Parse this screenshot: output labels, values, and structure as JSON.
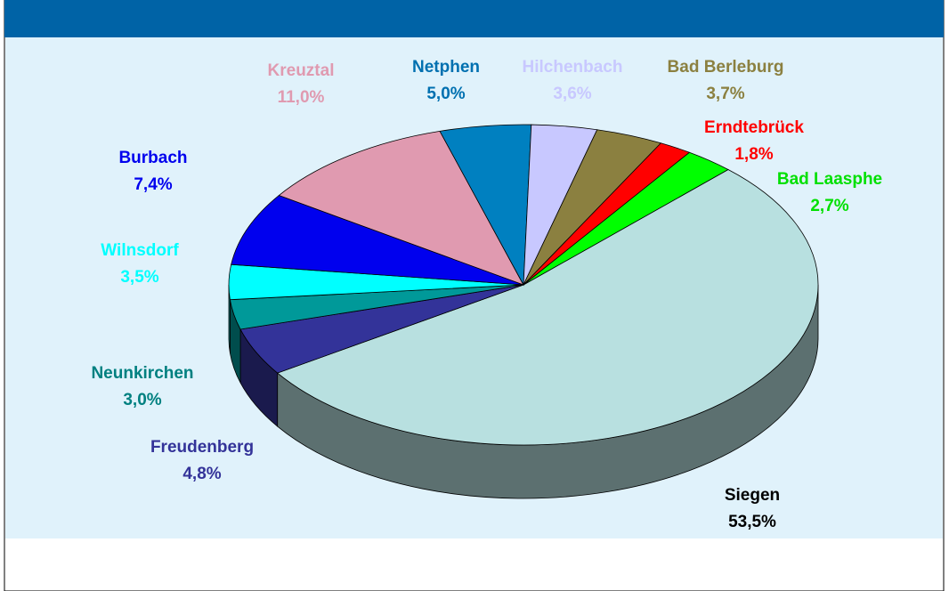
{
  "chart_data": {
    "type": "pie",
    "categories": [
      "Siegen",
      "Freudenberg",
      "Neunkirchen",
      "Wilnsdorf",
      "Burbach",
      "Kreuztal",
      "Netphen",
      "Hilchenbach",
      "Bad Berleburg",
      "Erndtebrück",
      "Bad Laasphe"
    ],
    "values": [
      53.5,
      4.8,
      3.0,
      3.5,
      7.4,
      11.0,
      5.0,
      3.6,
      3.7,
      1.8,
      2.7
    ],
    "value_labels": [
      "53,5%",
      "4,8%",
      "3,0%",
      "3,5%",
      "7,4%",
      "11,0%",
      "5,0%",
      "3,6%",
      "3,7%",
      "1,8%",
      "2,7%"
    ],
    "colors": [
      "#b8e0e0",
      "#333399",
      "#009999",
      "#00ffff",
      "#0000ee",
      "#e09ab0",
      "#0080c0",
      "#c8c8ff",
      "#8b8040",
      "#ff0000",
      "#00ff00"
    ],
    "label_colors": [
      "#000000",
      "#333399",
      "#008080",
      "#00ffff",
      "#0000ee",
      "#e09ab0",
      "#0070b0",
      "#c8c8ff",
      "#8b8040",
      "#ff0000",
      "#00e000"
    ]
  }
}
